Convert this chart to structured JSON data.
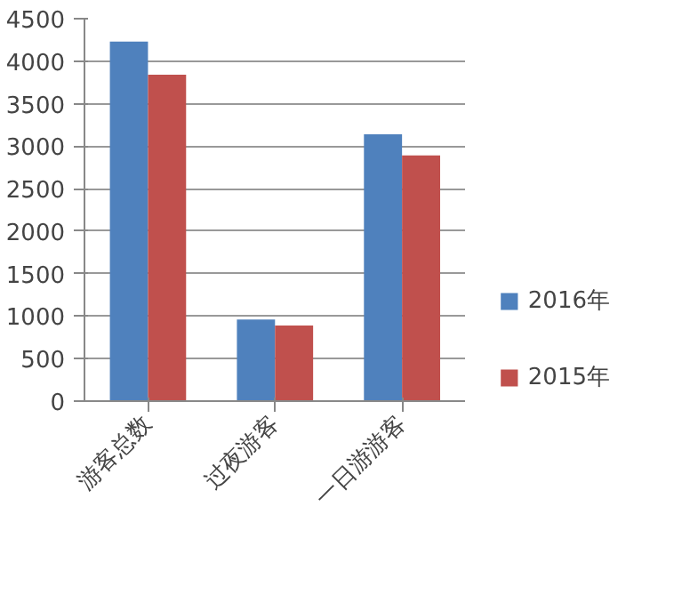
{
  "chart_data": {
    "type": "bar",
    "categories": [
      "游客总数",
      "过夜游客",
      "一日游游客"
    ],
    "series": [
      {
        "name": "2016年",
        "color": "#4f81bd",
        "values": [
          4230,
          960,
          3140
        ]
      },
      {
        "name": "2015年",
        "color": "#c0504d",
        "values": [
          3840,
          890,
          2890
        ]
      }
    ],
    "ylim": [
      0,
      4500
    ],
    "yticks": [
      0,
      500,
      1000,
      1500,
      2000,
      2500,
      3000,
      3500,
      4000,
      4500
    ],
    "grid": "y",
    "legend": "right"
  }
}
